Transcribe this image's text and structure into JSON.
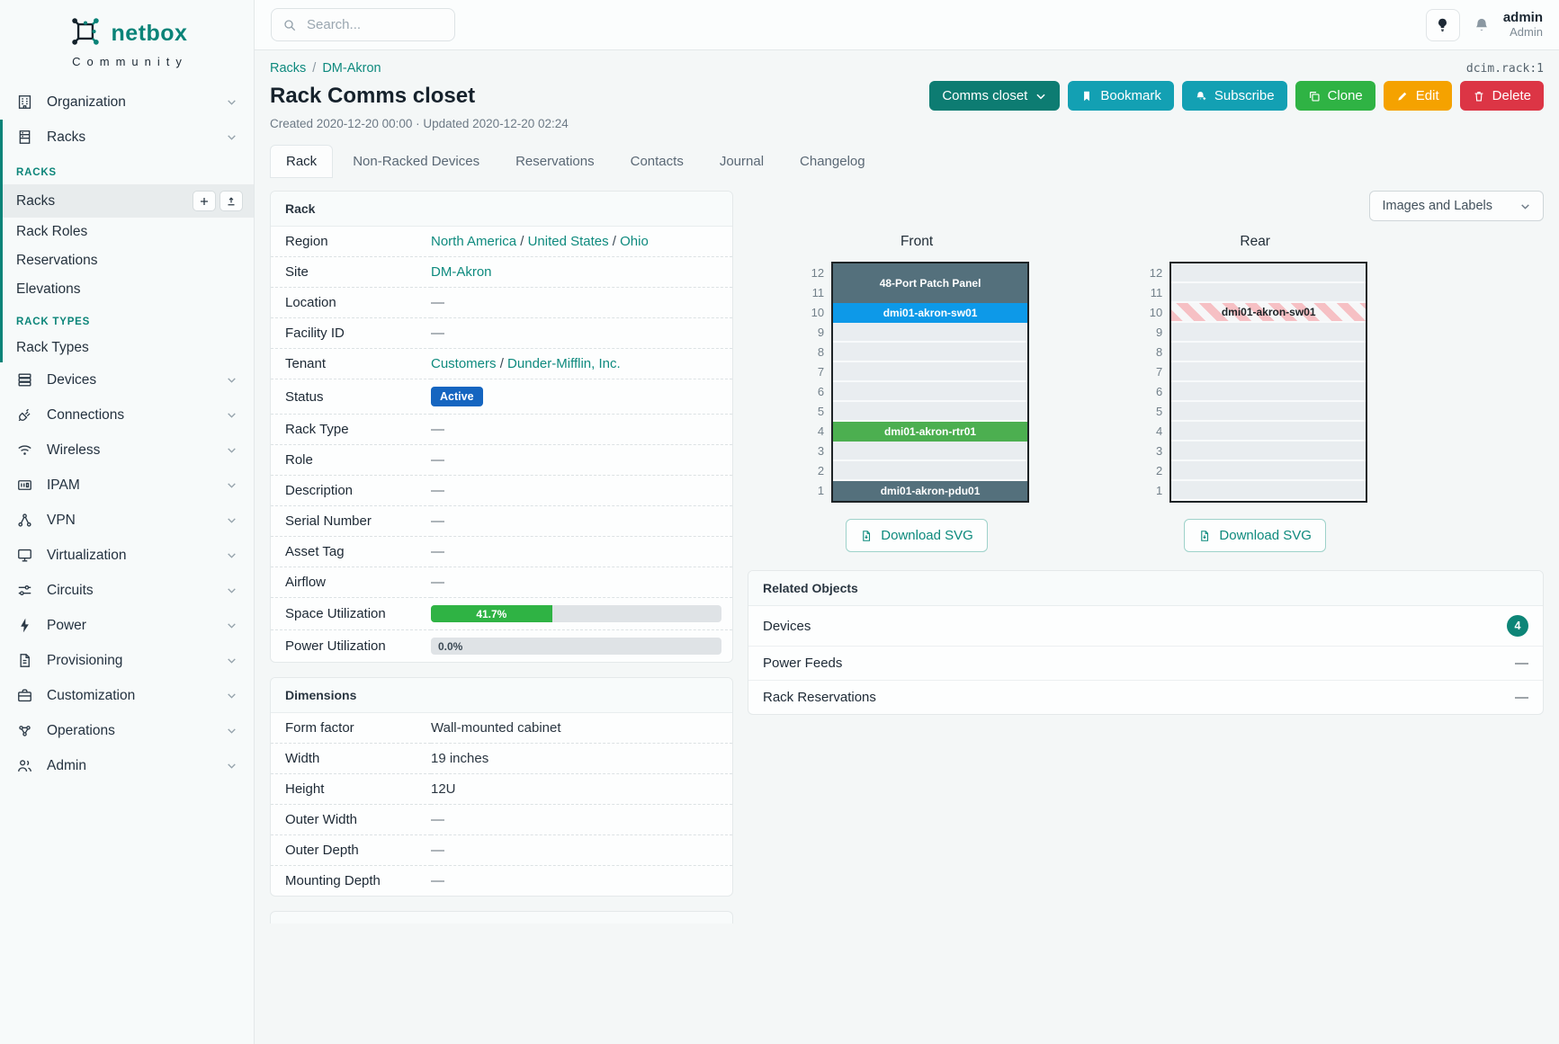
{
  "colors": {
    "accent_teal": "#0a8378",
    "link_teal": "#0e8a7e",
    "status_blue": "#1565c0",
    "util_green": "#2fb344",
    "device_slate": "#54707c",
    "device_blue": "#0d99e8",
    "device_green": "#4caf50",
    "reserved_stripe_pink": "#f6c0c4"
  },
  "brand": {
    "name": "netbox",
    "subtitle": "Community"
  },
  "topbar": {
    "search_placeholder": "Search...",
    "user_name": "admin",
    "user_role": "Admin"
  },
  "sidebar": {
    "organization_label": "Organization",
    "racks_label": "Racks",
    "racks_group": {
      "header1": "RACKS",
      "items1": [
        "Racks",
        "Rack Roles",
        "Reservations",
        "Elevations"
      ],
      "header2": "RACK TYPES",
      "items2": [
        "Rack Types"
      ]
    },
    "menu": [
      "Devices",
      "Connections",
      "Wireless",
      "IPAM",
      "VPN",
      "Virtualization",
      "Circuits",
      "Power",
      "Provisioning",
      "Customization",
      "Operations",
      "Admin"
    ]
  },
  "breadcrumb": {
    "items": [
      "Racks",
      "DM-Akron"
    ],
    "separator": "/",
    "object_id": "dcim.rack:1"
  },
  "header": {
    "title": "Rack Comms closet",
    "meta": "Created 2020-12-20 00:00 · Updated 2020-12-20 02:24",
    "actions": {
      "rename": "Comms closet",
      "bookmark": "Bookmark",
      "subscribe": "Subscribe",
      "clone": "Clone",
      "edit": "Edit",
      "delete": "Delete"
    }
  },
  "tabs": [
    "Rack",
    "Non-Racked Devices",
    "Reservations",
    "Contacts",
    "Journal",
    "Changelog"
  ],
  "rack_panel": {
    "title": "Rack",
    "link_separator": "/",
    "region_label": "Region",
    "region_links": [
      "North America",
      "United States",
      "Ohio"
    ],
    "site_label": "Site",
    "site_link": "DM-Akron",
    "location_label": "Location",
    "location_value": "—",
    "facility_label": "Facility ID",
    "facility_value": "—",
    "tenant_label": "Tenant",
    "tenant_links": [
      "Customers",
      "Dunder-Mifflin, Inc."
    ],
    "status_label": "Status",
    "status_value": "Active",
    "rack_type_label": "Rack Type",
    "rack_type_value": "—",
    "role_label": "Role",
    "role_value": "—",
    "description_label": "Description",
    "description_value": "—",
    "serial_label": "Serial Number",
    "serial_value": "—",
    "asset_label": "Asset Tag",
    "asset_value": "—",
    "airflow_label": "Airflow",
    "airflow_value": "—",
    "space_label": "Space Utilization",
    "space_pct": "41.7%",
    "space_pct_value": 41.7,
    "power_label": "Power Utilization",
    "power_pct": "0.0%",
    "power_pct_value": 0.0
  },
  "dimensions_panel": {
    "title": "Dimensions",
    "rows": [
      [
        "Form factor",
        "Wall-mounted cabinet"
      ],
      [
        "Width",
        "19 inches"
      ],
      [
        "Height",
        "12U"
      ],
      [
        "Outer Width",
        "—"
      ],
      [
        "Outer Depth",
        "—"
      ],
      [
        "Mounting Depth",
        "—"
      ]
    ]
  },
  "elevations": {
    "view_select": "Images and Labels",
    "download_label": "Download SVG",
    "unit_count": 12,
    "front": {
      "title": "Front",
      "cells": [
        {
          "span": 2,
          "label": "48-Port Patch Panel",
          "style": "slate"
        },
        {
          "span": 1,
          "label": "dmi01-akron-sw01",
          "style": "blue"
        },
        {
          "span": 1,
          "style": "empty"
        },
        {
          "span": 1,
          "style": "empty"
        },
        {
          "span": 1,
          "style": "empty"
        },
        {
          "span": 1,
          "style": "empty"
        },
        {
          "span": 1,
          "style": "empty"
        },
        {
          "span": 1,
          "label": "dmi01-akron-rtr01",
          "style": "green"
        },
        {
          "span": 1,
          "style": "empty"
        },
        {
          "span": 1,
          "style": "empty"
        },
        {
          "span": 1,
          "label": "dmi01-akron-pdu01",
          "style": "slate"
        }
      ]
    },
    "rear": {
      "title": "Rear",
      "cells": [
        {
          "span": 1,
          "style": "empty"
        },
        {
          "span": 1,
          "style": "empty"
        },
        {
          "span": 1,
          "label": "dmi01-akron-sw01",
          "style": "striped"
        },
        {
          "span": 1,
          "style": "empty"
        },
        {
          "span": 1,
          "style": "empty"
        },
        {
          "span": 1,
          "style": "empty"
        },
        {
          "span": 1,
          "style": "empty"
        },
        {
          "span": 1,
          "style": "empty"
        },
        {
          "span": 1,
          "style": "empty"
        },
        {
          "span": 1,
          "style": "empty"
        },
        {
          "span": 1,
          "style": "empty"
        },
        {
          "span": 1,
          "style": "empty"
        }
      ]
    }
  },
  "related_panel": {
    "title": "Related Objects",
    "rows": [
      {
        "label": "Devices",
        "badge": "4"
      },
      {
        "label": "Power Feeds",
        "value": "—"
      },
      {
        "label": "Rack Reservations",
        "value": "—"
      }
    ]
  }
}
